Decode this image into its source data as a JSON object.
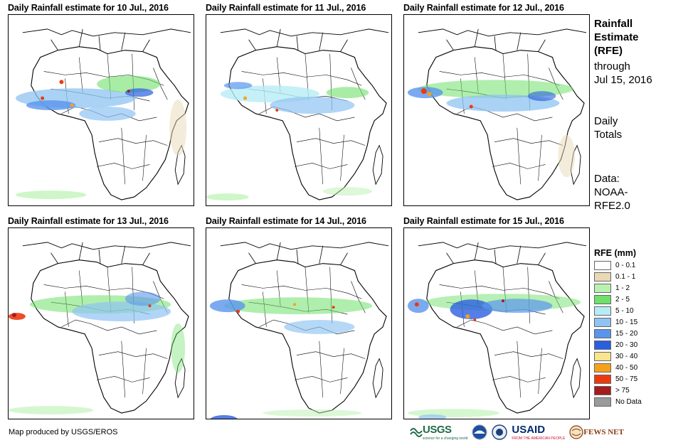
{
  "panels": [
    {
      "title": "Daily Rainfall estimate for 10 Jul., 2016"
    },
    {
      "title": "Daily Rainfall estimate for 11 Jul., 2016"
    },
    {
      "title": "Daily Rainfall estimate for 12 Jul., 2016"
    },
    {
      "title": "Daily Rainfall estimate for 13 Jul., 2016"
    },
    {
      "title": "Daily Rainfall estimate for 14 Jul., 2016"
    },
    {
      "title": "Daily Rainfall estimate for 15 Jul., 2016"
    }
  ],
  "sidebar": {
    "title_line1": "Rainfall",
    "title_line2": "Estimate",
    "title_line3": "(RFE)",
    "through_line1": "through",
    "through_line2": "Jul 15, 2016",
    "totals_line1": "Daily",
    "totals_line2": "Totals",
    "data_line1": "Data:",
    "data_line2": "NOAA-",
    "data_line3": "RFE2.0"
  },
  "legend": {
    "title": "RFE (mm)",
    "items": [
      {
        "label": "0 - 0.1",
        "color": "#ffffff"
      },
      {
        "label": "0.1 - 1",
        "color": "#ead9b5"
      },
      {
        "label": "1 - 2",
        "color": "#b9f2b0"
      },
      {
        "label": "2 - 5",
        "color": "#6fe06a"
      },
      {
        "label": "5 - 10",
        "color": "#b6ecf5"
      },
      {
        "label": "10 - 15",
        "color": "#8ec3f2"
      },
      {
        "label": "15 - 20",
        "color": "#5a95ec"
      },
      {
        "label": "20 - 30",
        "color": "#2a5fe0"
      },
      {
        "label": "30 - 40",
        "color": "#fbe48f"
      },
      {
        "label": "40 - 50",
        "color": "#f6a11c"
      },
      {
        "label": "50 - 75",
        "color": "#ec3a10"
      },
      {
        "label": "> 75",
        "color": "#a51c1c"
      },
      {
        "label": "No Data",
        "color": "#9a9a9a"
      }
    ]
  },
  "footer": {
    "credit": "Map produced by USGS/EROS",
    "logo_usgs": "USGS",
    "logo_usgs_tagline": "science for a changing world",
    "logo_usaid": "USAID",
    "logo_usaid_tagline": "FROM THE AMERICAN PEOPLE",
    "logo_fews": "FEWS NET"
  }
}
